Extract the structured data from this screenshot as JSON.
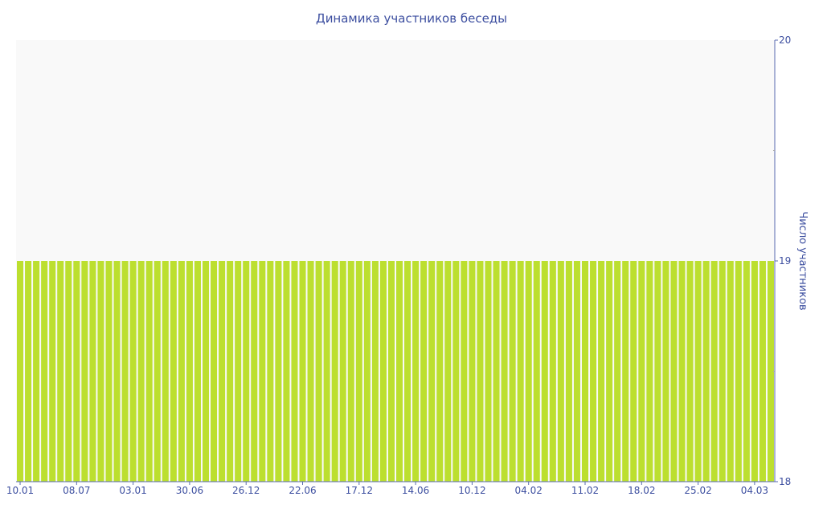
{
  "chart_data": {
    "type": "bar",
    "title": "Динамика участников беседы",
    "ylabel": "Число участников",
    "xlabel": "",
    "ylim": [
      18,
      20
    ],
    "y_ticks": [
      "18",
      "19",
      "20"
    ],
    "y_axis_side": "right",
    "x_tick_labels": [
      "10.01",
      "08.07",
      "03.01",
      "30.06",
      "26.12",
      "22.06",
      "17.12",
      "14.06",
      "10.12",
      "04.02",
      "11.02",
      "18.02",
      "25.02",
      "04.03"
    ],
    "x_tick_every": 7,
    "values": [
      19,
      19,
      19,
      19,
      19,
      19,
      19,
      19,
      19,
      19,
      19,
      19,
      19,
      19,
      19,
      19,
      19,
      19,
      19,
      19,
      19,
      19,
      19,
      19,
      19,
      19,
      19,
      19,
      19,
      19,
      19,
      19,
      19,
      19,
      19,
      19,
      19,
      19,
      19,
      19,
      19,
      19,
      19,
      19,
      19,
      19,
      19,
      19,
      19,
      19,
      19,
      19,
      19,
      19,
      19,
      19,
      19,
      19,
      19,
      19,
      19,
      19,
      19,
      19,
      19,
      19,
      19,
      19,
      19,
      19,
      19,
      19,
      19,
      19,
      19,
      19,
      19,
      19,
      19,
      19,
      19,
      19,
      19,
      19,
      19,
      19,
      19,
      19,
      19,
      19,
      19,
      19,
      19,
      19
    ],
    "grid": false,
    "legend": "none",
    "colors": {
      "bar": "#bcdf2f",
      "plot_bg": "#f9f9f9",
      "text": "#3d4fa0",
      "axis": "#5a6bb0"
    }
  }
}
